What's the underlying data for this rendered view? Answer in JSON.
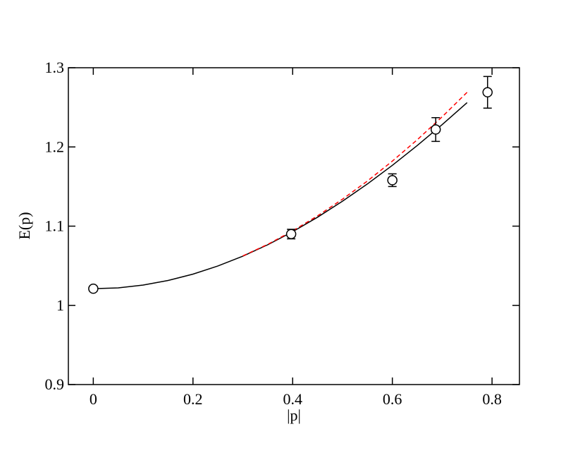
{
  "chart_data": {
    "type": "scatter",
    "xlabel": "|p|",
    "ylabel": "E(p)",
    "xlim": [
      -0.05,
      0.855
    ],
    "ylim": [
      0.9,
      1.3
    ],
    "xticks": [
      0,
      0.2,
      0.4,
      0.6,
      0.8
    ],
    "yticks": [
      0.9,
      1,
      1.1,
      1.2,
      1.3
    ],
    "points": {
      "color": "#000000",
      "x": [
        0,
        0.397,
        0.6,
        0.687,
        0.791
      ],
      "values": [
        1.021,
        1.09,
        1.158,
        1.222,
        1.269
      ],
      "errors": [
        0.003,
        0.006,
        0.008,
        0.015,
        0.02
      ]
    },
    "curves": [
      {
        "color": "#000000",
        "dashed": false,
        "x": [
          0,
          0.05,
          0.1,
          0.15,
          0.2,
          0.25,
          0.3,
          0.35,
          0.4,
          0.45,
          0.5,
          0.55,
          0.6,
          0.65,
          0.7,
          0.75
        ],
        "values": [
          1.021,
          1.0221,
          1.0256,
          1.0314,
          1.0394,
          1.0497,
          1.0621,
          1.0765,
          1.093,
          1.1113,
          1.1315,
          1.1533,
          1.1768,
          1.2018,
          1.2282,
          1.256
        ]
      },
      {
        "color": "#ff0000",
        "dashed": true,
        "x": [
          0.3,
          0.35,
          0.4,
          0.45,
          0.5,
          0.55,
          0.6,
          0.65,
          0.7,
          0.75
        ],
        "values": [
          1.0624,
          1.077,
          1.094,
          1.113,
          1.1341,
          1.157,
          1.1821,
          1.2091,
          1.2381,
          1.269
        ]
      }
    ]
  }
}
